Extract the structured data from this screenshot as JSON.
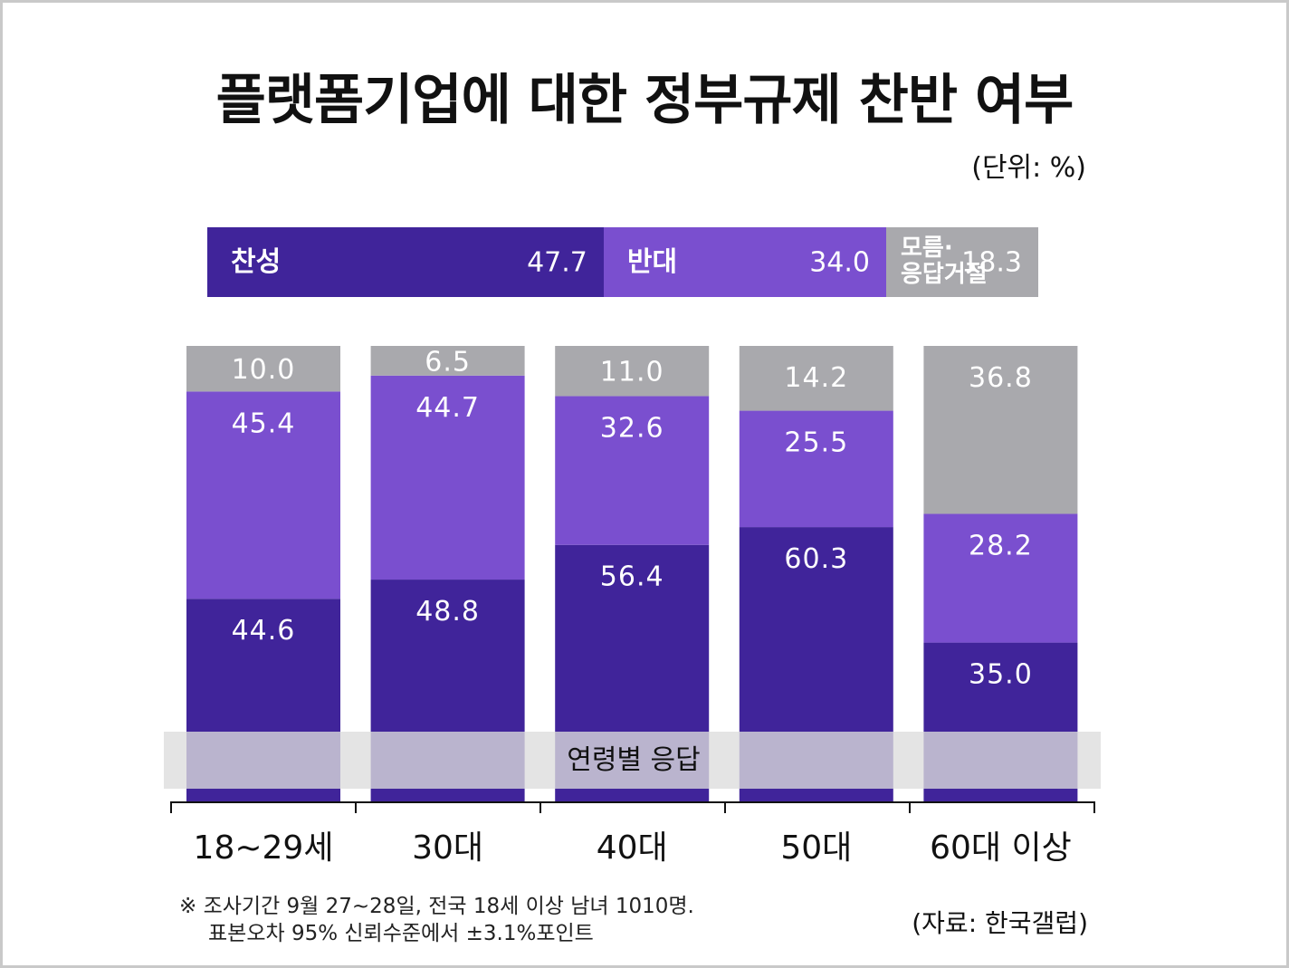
{
  "title": "플랫폼기업에 대한 정부규제 찬반 여부",
  "unit": "(단위: %)",
  "colors": {
    "agree": "#40249a",
    "disagree": "#7a4fcf",
    "unknown": "#a9a9ad"
  },
  "summary": [
    {
      "label": "찬성",
      "value": "47.7"
    },
    {
      "label": "반대",
      "value": "34.0"
    },
    {
      "label_line1": "모름·",
      "label_line2": "응답거절",
      "value": "18.3"
    }
  ],
  "band_label": "연령별 응답",
  "chart_data": {
    "type": "bar",
    "stacked": true,
    "categories": [
      "18~29세",
      "30대",
      "40대",
      "50대",
      "60대 이상"
    ],
    "series": [
      {
        "name": "찬성",
        "values": [
          44.6,
          48.8,
          56.4,
          60.3,
          35.0
        ]
      },
      {
        "name": "반대",
        "values": [
          45.4,
          44.7,
          32.6,
          25.5,
          28.2
        ]
      },
      {
        "name": "모름·응답거절",
        "values": [
          10.0,
          6.5,
          11.0,
          14.2,
          36.8
        ]
      }
    ],
    "ylim": [
      0,
      100
    ]
  },
  "footnote": {
    "line1": "※ 조사기간 9월 27~28일, 전국 18세 이상 남녀 1010명.",
    "line2": "표본오차 95% 신뢰수준에서 ±3.1%포인트"
  },
  "source": "(자료: 한국갤럽)"
}
